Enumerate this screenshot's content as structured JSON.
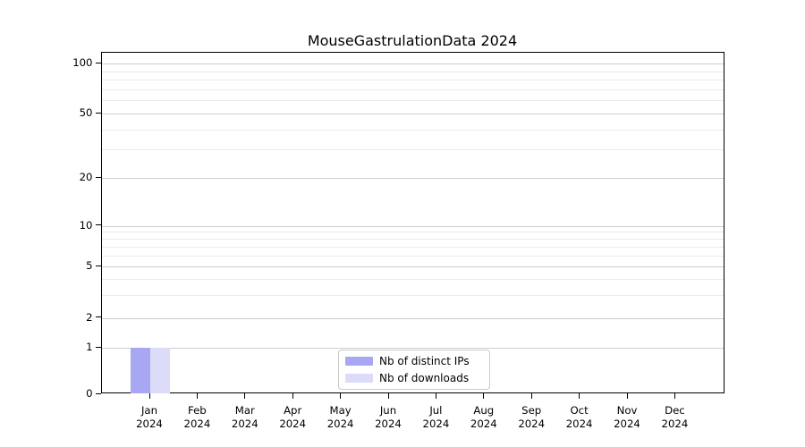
{
  "chart_data": {
    "type": "bar",
    "title": "MouseGastrulationData 2024",
    "xlabel": "",
    "ylabel": "",
    "categories": [
      {
        "month": "Jan",
        "year": "2024"
      },
      {
        "month": "Feb",
        "year": "2024"
      },
      {
        "month": "Mar",
        "year": "2024"
      },
      {
        "month": "Apr",
        "year": "2024"
      },
      {
        "month": "May",
        "year": "2024"
      },
      {
        "month": "Jun",
        "year": "2024"
      },
      {
        "month": "Jul",
        "year": "2024"
      },
      {
        "month": "Aug",
        "year": "2024"
      },
      {
        "month": "Sep",
        "year": "2024"
      },
      {
        "month": "Oct",
        "year": "2024"
      },
      {
        "month": "Nov",
        "year": "2024"
      },
      {
        "month": "Dec",
        "year": "2024"
      }
    ],
    "series": [
      {
        "name": "Nb of distinct IPs",
        "color": "#a7a7f3",
        "values": [
          1,
          0,
          0,
          0,
          0,
          0,
          0,
          0,
          0,
          0,
          0,
          0
        ]
      },
      {
        "name": "Nb of downloads",
        "color": "#dcdcf8",
        "values": [
          1,
          0,
          0,
          0,
          0,
          0,
          0,
          0,
          0,
          0,
          0,
          0
        ]
      }
    ],
    "yscale": "symlog",
    "yticks": [
      0,
      1,
      2,
      5,
      10,
      20,
      50,
      100
    ],
    "yticks_minor": [
      3,
      4,
      6,
      7,
      8,
      9,
      30,
      40,
      60,
      70,
      80,
      90
    ],
    "ylim": [
      0,
      120
    ],
    "grid": true,
    "legend_position": "lower center"
  },
  "colors": {
    "major_grid": "#cdcdcd",
    "minor_grid": "#ebebeb",
    "axis": "#000000",
    "background": "#ffffff"
  }
}
